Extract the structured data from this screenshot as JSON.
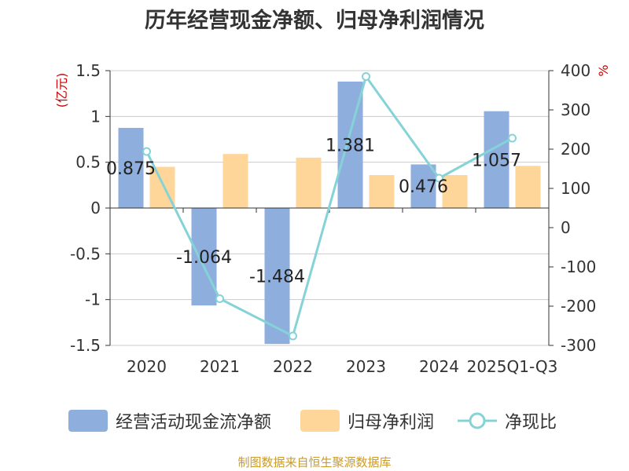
{
  "chart_data": {
    "type": "bar",
    "title": "历年经营现金净额、归母净利润情况",
    "categories": [
      "2020",
      "2021",
      "2022",
      "2023",
      "2024",
      "2025Q1-Q3"
    ],
    "y_left_unit": "(亿元)",
    "y_right_unit": "%",
    "y_left_range": [
      -1.5,
      1.5
    ],
    "y_left_ticks": [
      "1.5",
      "1",
      "0.5",
      "0",
      "-0.5",
      "-1",
      "-1.5"
    ],
    "y_right_range": [
      -300,
      400
    ],
    "y_right_ticks": [
      "400",
      "300",
      "200",
      "100",
      "0",
      "-100",
      "-200",
      "-300"
    ],
    "grid": true,
    "legend_position": "bottom",
    "series": [
      {
        "name": "经营活动现金流净额",
        "kind": "bar",
        "axis": "left",
        "color": "#8eaedd",
        "values": [
          0.875,
          -1.064,
          -1.484,
          1.381,
          0.476,
          1.057
        ],
        "labels": [
          "0.875",
          "-1.064",
          "-1.484",
          "1.381",
          "0.476",
          "1.057"
        ]
      },
      {
        "name": "归母净利润",
        "kind": "bar",
        "axis": "left",
        "color": "#ffd699",
        "values": [
          0.45,
          0.59,
          0.55,
          0.36,
          0.36,
          0.46
        ]
      },
      {
        "name": "净现比",
        "kind": "line",
        "axis": "right",
        "color": "#85d3d6",
        "values": [
          194,
          -181,
          -276,
          385,
          126,
          228
        ]
      }
    ]
  },
  "footer": {
    "source": "制图数据来自恒生聚源数据库"
  }
}
